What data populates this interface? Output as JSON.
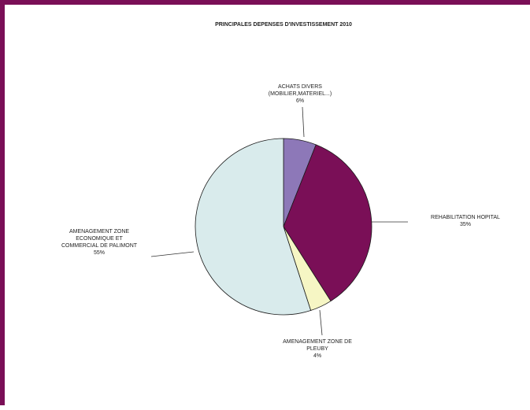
{
  "colors": {
    "frame": "#7a0f57",
    "slice_outline": "#1a1a1a",
    "leader": "#333333"
  },
  "chart_data": {
    "type": "pie",
    "title": "PRINCIPALES DEPENSES D'INVESTISSEMENT 2010",
    "slices": [
      {
        "label_lines": [
          "ACHATS DIVERS",
          "(MOBILIER,MATERIEL...)"
        ],
        "value_text": "6%",
        "value": 6,
        "color": "#8d78b8"
      },
      {
        "label_lines": [
          "REHABILITATION HOPITAL"
        ],
        "value_text": "35%",
        "value": 35,
        "color": "#7a0f57"
      },
      {
        "label_lines": [
          "AMENAGEMENT ZONE DE",
          "PLEUBY"
        ],
        "value_text": "4%",
        "value": 4,
        "color": "#f6f6c4"
      },
      {
        "label_lines": [
          "AMENAGEMENT ZONE",
          "ECONOMIQUE ET",
          "COMMERCIAL DE PALIMONT"
        ],
        "value_text": "55%",
        "value": 55,
        "color": "#d9ebec"
      }
    ]
  }
}
